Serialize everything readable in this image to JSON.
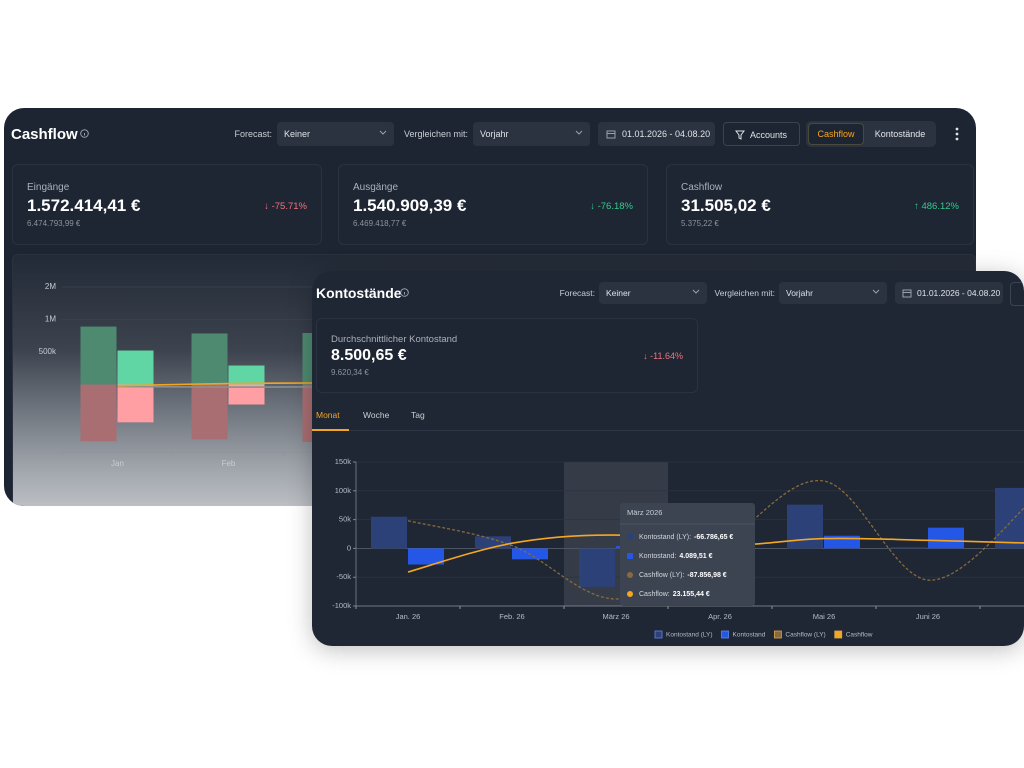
{
  "cashflow_panel": {
    "title": "Cashflow",
    "forecast_label": "Forecast:",
    "forecast": "Keiner",
    "compare_label": "Vergleichen mit:",
    "compare": "Vorjahr",
    "date_range": "01.01.2026 - 04.08.20",
    "accounts": "Accounts",
    "toggle": [
      "Cashflow",
      "Kontostände"
    ],
    "kpis": [
      {
        "label": "Eingänge",
        "value": "1.572.414,41 €",
        "previous": "6.474.793,99 €",
        "change": "↓ -75.71%",
        "color": "#f0727c"
      },
      {
        "label": "Ausgänge",
        "value": "1.540.909,39 €",
        "previous": "6.469.418,77 €",
        "change": "↓ -76.18%",
        "color": "#34c98e"
      },
      {
        "label": "Cashflow",
        "value": "31.505,02 €",
        "previous": "5.375,22 €",
        "change": "↑ 486.12%",
        "color": "#34c98e"
      }
    ]
  },
  "balance_panel": {
    "title": "Kontostände",
    "forecast_label": "Forecast:",
    "forecast": "Keiner",
    "compare_label": "Vergleichen mit:",
    "compare": "Vorjahr",
    "date_range": "01.01.2026 - 04.08.20",
    "kpi": {
      "label": "Durchschnittlicher Kontostand",
      "value": "8.500,65 €",
      "previous": "9.620,34 €",
      "change": "↓ -11.64%",
      "color": "#f0727c"
    },
    "tabs": [
      "Monat",
      "Woche",
      "Tag"
    ]
  },
  "chart_data": [
    {
      "type": "bar",
      "categories": [
        "Jan",
        "Feb",
        null
      ],
      "yscale": "symlog",
      "ylim": [
        -1000000,
        2000000
      ],
      "yticks": [
        {
          "value": 500000,
          "label": "500k"
        },
        {
          "value": 1000000,
          "label": "1M"
        },
        {
          "value": 2000000,
          "label": "2M"
        }
      ],
      "grid": true,
      "series": [
        {
          "type": "bar",
          "color": "#4d8a70",
          "values": [
            860000,
            742000,
            750000
          ]
        },
        {
          "type": "bar",
          "color": "#5fd6a3",
          "values": [
            516000,
            292000,
            null
          ]
        },
        {
          "type": "bar",
          "color": "#a86e72",
          "values": [
            -840000,
            -805000,
            -850000
          ]
        },
        {
          "type": "bar",
          "color": "#ff9fa3",
          "values": [
            -560000,
            -308000,
            null
          ]
        },
        {
          "type": "line",
          "color": "#8d8f8c",
          "values": [
            -30000,
            -40000,
            -35000
          ]
        },
        {
          "type": "line",
          "color": "#f5a524",
          "values": [
            -20000,
            15000,
            25000
          ]
        }
      ]
    },
    {
      "type": "bar",
      "categories": [
        "Jan. 26",
        "Feb. 26",
        "März 26",
        "Apr. 26",
        "Mai 26",
        "Juni 26",
        null
      ],
      "ylim": [
        -100000,
        150000
      ],
      "yticks": [
        {
          "value": -100000,
          "label": "-100k"
        },
        {
          "value": -50000,
          "label": "-50k"
        },
        0,
        {
          "value": 50000,
          "label": "50k"
        },
        {
          "value": 100000,
          "label": "100k"
        },
        {
          "value": 150000,
          "label": "150k"
        }
      ],
      "grid": true,
      "legend": "bottom",
      "series": [
        {
          "name": "Kontostand (LY)",
          "type": "bar",
          "color": "#2b4178",
          "values": [
            55000,
            21000,
            -66786.65,
            null,
            76000,
            2000,
            105000
          ],
          "value_labels": [
            null,
            null,
            "-66.786,65 €",
            null,
            null,
            null,
            null
          ]
        },
        {
          "name": "Kontostand",
          "type": "bar",
          "color": "#2457e6",
          "values": [
            -28000,
            -19000,
            4089.51,
            null,
            22000,
            36000,
            null
          ],
          "value_labels": [
            null,
            null,
            "4.089,51 €",
            null,
            null,
            null,
            null
          ]
        },
        {
          "name": "Cashflow (LY)",
          "type": "line",
          "dashed": true,
          "color": "#8a6a3c",
          "values": [
            48000,
            5000,
            -87856.98,
            5000,
            117000,
            -55000,
            83000
          ],
          "value_labels": [
            null,
            null,
            "-87.856,98 €",
            null,
            null,
            null,
            null
          ]
        },
        {
          "name": "Cashflow",
          "type": "line",
          "color": "#f5a623",
          "values": [
            -41000,
            9000,
            23155.44,
            5000,
            17000,
            14000,
            9000
          ],
          "value_labels": [
            null,
            null,
            "23.155,44 €",
            null,
            null,
            null,
            null
          ]
        }
      ],
      "tooltip": {
        "title": "März 2026",
        "labels": [
          "Kontostand (LY):",
          "Kontostand:",
          "Cashflow (LY):",
          "Cashflow:"
        ]
      }
    }
  ]
}
